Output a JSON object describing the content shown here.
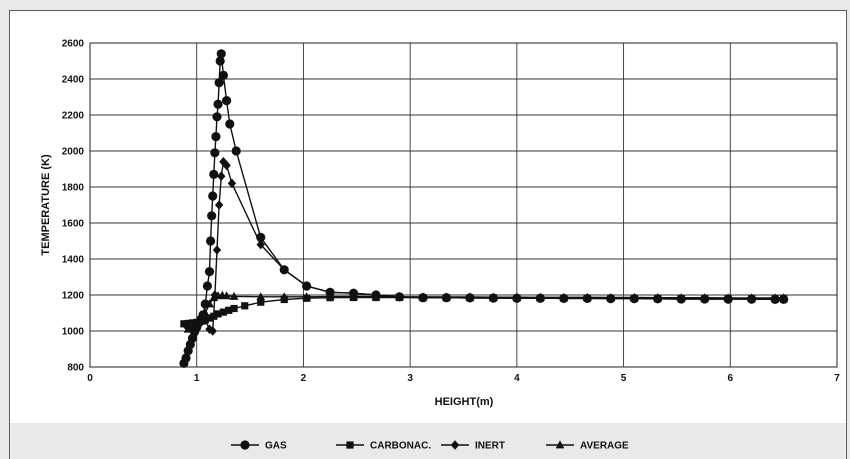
{
  "chart_data": {
    "type": "line",
    "title": "",
    "xlabel": "HEIGHT(m)",
    "ylabel": "TEMPERATURE (K)",
    "xlim": [
      0,
      7
    ],
    "ylim": [
      800,
      2600
    ],
    "xticks": [
      "0",
      "1",
      "2",
      "3",
      "4",
      "5",
      "6",
      "7"
    ],
    "yticks": [
      "800",
      "1000",
      "1200",
      "1400",
      "1600",
      "1800",
      "2000",
      "2200",
      "2400",
      "2600"
    ],
    "grid": true,
    "legend_position": "bottom",
    "series": [
      {
        "name": "GAS",
        "marker": "circle",
        "x": [
          0.88,
          0.9,
          0.92,
          0.94,
          0.96,
          0.98,
          1.0,
          1.02,
          1.04,
          1.06,
          1.08,
          1.1,
          1.12,
          1.13,
          1.14,
          1.15,
          1.16,
          1.17,
          1.18,
          1.19,
          1.2,
          1.21,
          1.22,
          1.23,
          1.25,
          1.28,
          1.31,
          1.37,
          1.6,
          1.82,
          2.03,
          2.25,
          2.47,
          2.68,
          2.9,
          3.12,
          3.34,
          3.56,
          3.78,
          4.0,
          4.22,
          4.44,
          4.66,
          4.88,
          5.1,
          5.32,
          5.54,
          5.76,
          5.98,
          6.2,
          6.42,
          6.5
        ],
        "y": [
          820,
          850,
          890,
          925,
          960,
          995,
          1020,
          1045,
          1065,
          1090,
          1150,
          1250,
          1330,
          1500,
          1640,
          1750,
          1870,
          1990,
          2080,
          2190,
          2260,
          2380,
          2500,
          2540,
          2420,
          2280,
          2150,
          2000,
          1520,
          1340,
          1250,
          1215,
          1210,
          1200,
          1190,
          1185,
          1185,
          1184,
          1183,
          1182,
          1182,
          1181,
          1181,
          1180,
          1180,
          1179,
          1178,
          1178,
          1177,
          1177,
          1176,
          1176
        ]
      },
      {
        "name": "CARBONAC.",
        "marker": "square",
        "x": [
          0.88,
          0.92,
          0.96,
          1.0,
          1.04,
          1.08,
          1.12,
          1.16,
          1.2,
          1.25,
          1.3,
          1.35,
          1.45,
          1.6,
          1.82,
          2.03,
          2.25,
          2.47,
          2.68,
          2.9,
          3.12,
          3.34,
          3.56,
          3.78,
          4.0,
          4.22,
          4.44,
          4.66,
          4.88,
          5.1,
          5.32,
          5.54,
          5.76,
          5.98,
          6.2,
          6.42,
          6.5
        ],
        "y": [
          1040,
          1042,
          1045,
          1048,
          1055,
          1062,
          1072,
          1082,
          1095,
          1105,
          1115,
          1125,
          1140,
          1160,
          1175,
          1182,
          1185,
          1186,
          1186,
          1186,
          1185,
          1185,
          1184,
          1184,
          1183,
          1183,
          1182,
          1182,
          1181,
          1181,
          1180,
          1180,
          1179,
          1179,
          1178,
          1178,
          1178
        ]
      },
      {
        "name": "INERT",
        "marker": "diamond",
        "x": [
          0.9,
          0.95,
          1.0,
          1.04,
          1.08,
          1.12,
          1.15,
          1.17,
          1.19,
          1.21,
          1.23,
          1.25,
          1.28,
          1.33,
          1.6,
          1.82,
          2.03,
          2.25,
          2.47,
          2.68,
          2.9,
          3.12,
          3.34,
          3.56,
          3.78,
          4.0,
          4.22,
          4.44,
          4.66,
          4.88,
          5.1,
          5.32,
          5.54,
          5.76,
          5.98,
          6.2,
          6.42,
          6.5
        ],
        "y": [
          1030,
          1035,
          1040,
          1050,
          1060,
          1010,
          1000,
          1200,
          1450,
          1700,
          1860,
          1940,
          1920,
          1820,
          1480,
          1340,
          1250,
          1215,
          1210,
          1200,
          1190,
          1185,
          1185,
          1184,
          1183,
          1182,
          1182,
          1181,
          1181,
          1180,
          1180,
          1179,
          1178,
          1178,
          1177,
          1177,
          1176,
          1176
        ]
      },
      {
        "name": "AVERAGE",
        "marker": "triangle",
        "x": [
          0.92,
          0.98,
          1.03,
          1.08,
          1.12,
          1.16,
          1.2,
          1.24,
          1.28,
          1.35,
          1.6,
          1.82,
          2.03,
          2.25,
          2.47,
          2.68,
          2.9,
          3.12,
          3.34,
          3.56,
          3.78,
          4.0,
          4.22,
          4.44,
          4.66,
          4.88,
          5.1,
          5.32,
          5.54,
          5.76,
          5.98,
          6.2,
          6.42,
          6.5
        ],
        "y": [
          1010,
          1030,
          1060,
          1100,
          1150,
          1185,
          1195,
          1198,
          1195,
          1192,
          1190,
          1190,
          1190,
          1191,
          1191,
          1191,
          1190,
          1190,
          1189,
          1189,
          1188,
          1188,
          1187,
          1187,
          1187,
          1186,
          1186,
          1185,
          1185,
          1185,
          1184,
          1184,
          1184,
          1184
        ]
      }
    ]
  }
}
